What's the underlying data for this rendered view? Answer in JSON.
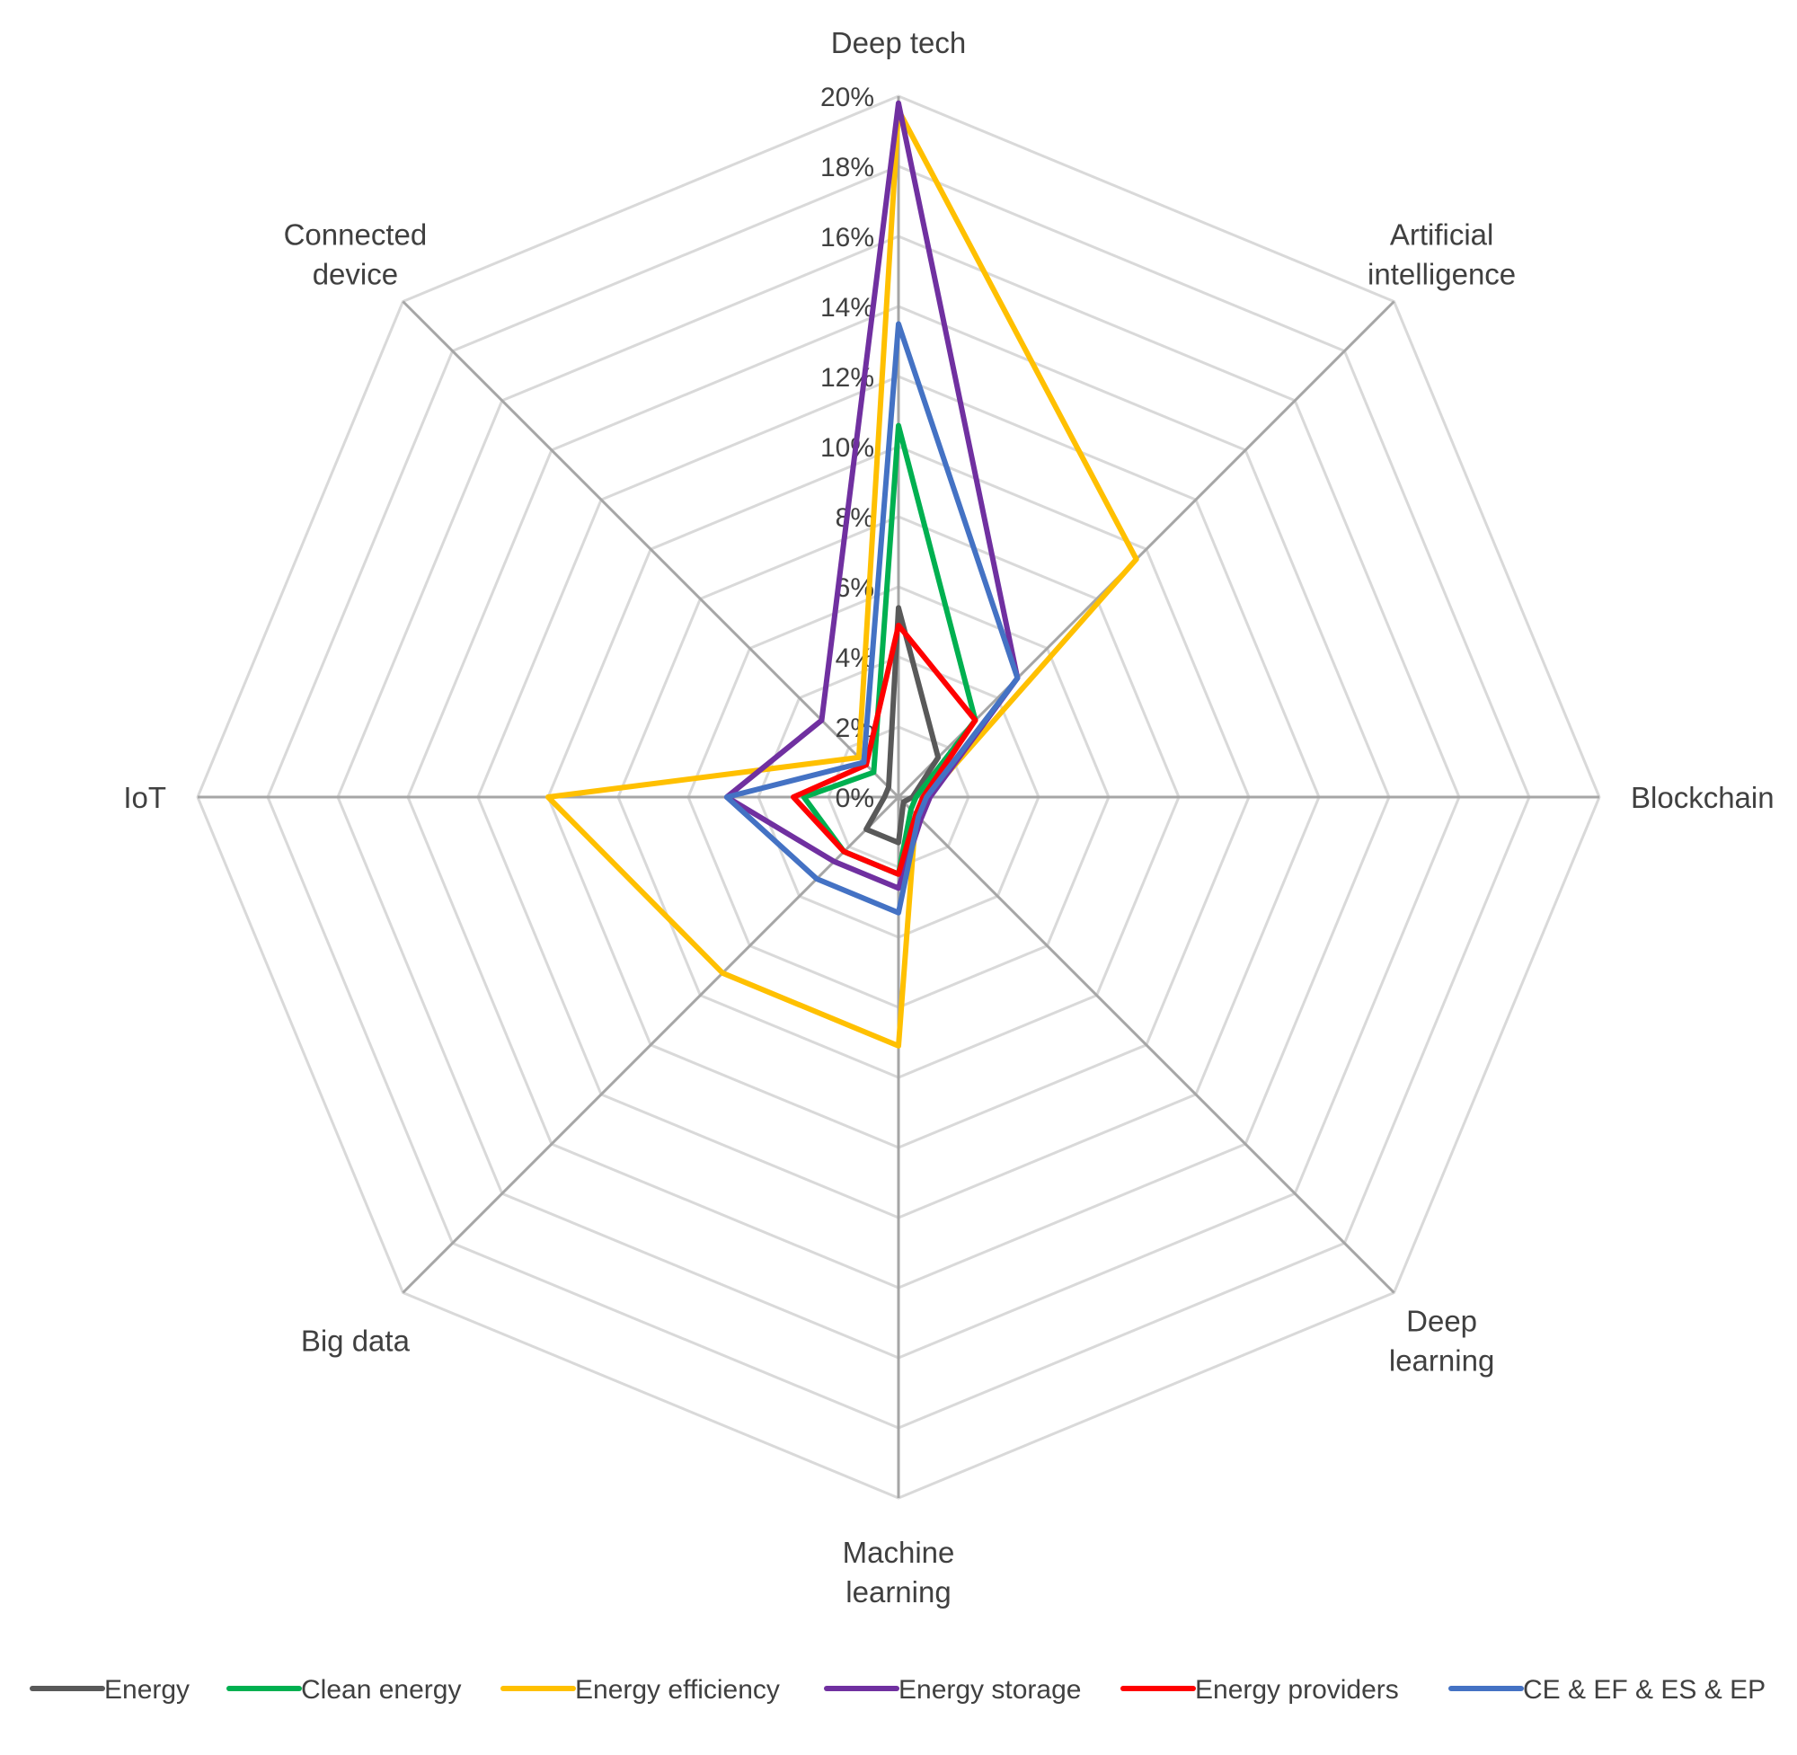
{
  "chart_data": {
    "type": "radar",
    "title": "",
    "axes": [
      "Deep tech",
      "Artificial intelligence",
      "Blockchain",
      "Deep learning",
      "Machine learning",
      "Big data",
      "IoT",
      "Connected device"
    ],
    "axis_label_lines": [
      [
        "Deep tech"
      ],
      [
        "Artificial",
        "intelligence"
      ],
      [
        "Blockchain"
      ],
      [
        "Deep",
        "learning"
      ],
      [
        "Machine",
        "learning"
      ],
      [
        "Big data"
      ],
      [
        "IoT"
      ],
      [
        "Connected",
        "device"
      ]
    ],
    "rmin": 0,
    "rmax": 20,
    "grid_step": 2,
    "tick_labels": [
      "0%",
      "2%",
      "4%",
      "6%",
      "8%",
      "10%",
      "12%",
      "14%",
      "16%",
      "18%",
      "20%"
    ],
    "legend_position": "bottom",
    "series": [
      {
        "name": "Energy",
        "color": "#595959",
        "values": [
          5.4,
          1.6,
          0.4,
          0.2,
          1.3,
          1.3,
          0.4,
          0.4
        ]
      },
      {
        "name": "Clean energy",
        "color": "#00B050",
        "values": [
          10.6,
          3.1,
          0.5,
          0.5,
          2.2,
          2.2,
          2.7,
          1.0
        ]
      },
      {
        "name": "Energy efficiency",
        "color": "#FFC000",
        "values": [
          19.6,
          9.6,
          0.8,
          0.7,
          7.1,
          7.1,
          10.0,
          1.6
        ]
      },
      {
        "name": "Energy storage",
        "color": "#7030A0",
        "values": [
          19.8,
          4.8,
          0.9,
          0.9,
          2.6,
          2.6,
          4.9,
          3.1
        ]
      },
      {
        "name": "Energy providers",
        "color": "#FF0000",
        "values": [
          4.9,
          3.1,
          0.7,
          0.7,
          2.2,
          2.2,
          3.0,
          1.3
        ]
      },
      {
        "name": "CE & EF & ES & EP",
        "color": "#4472C4",
        "values": [
          13.5,
          4.8,
          0.8,
          0.8,
          3.3,
          3.3,
          4.9,
          1.4
        ]
      }
    ]
  }
}
